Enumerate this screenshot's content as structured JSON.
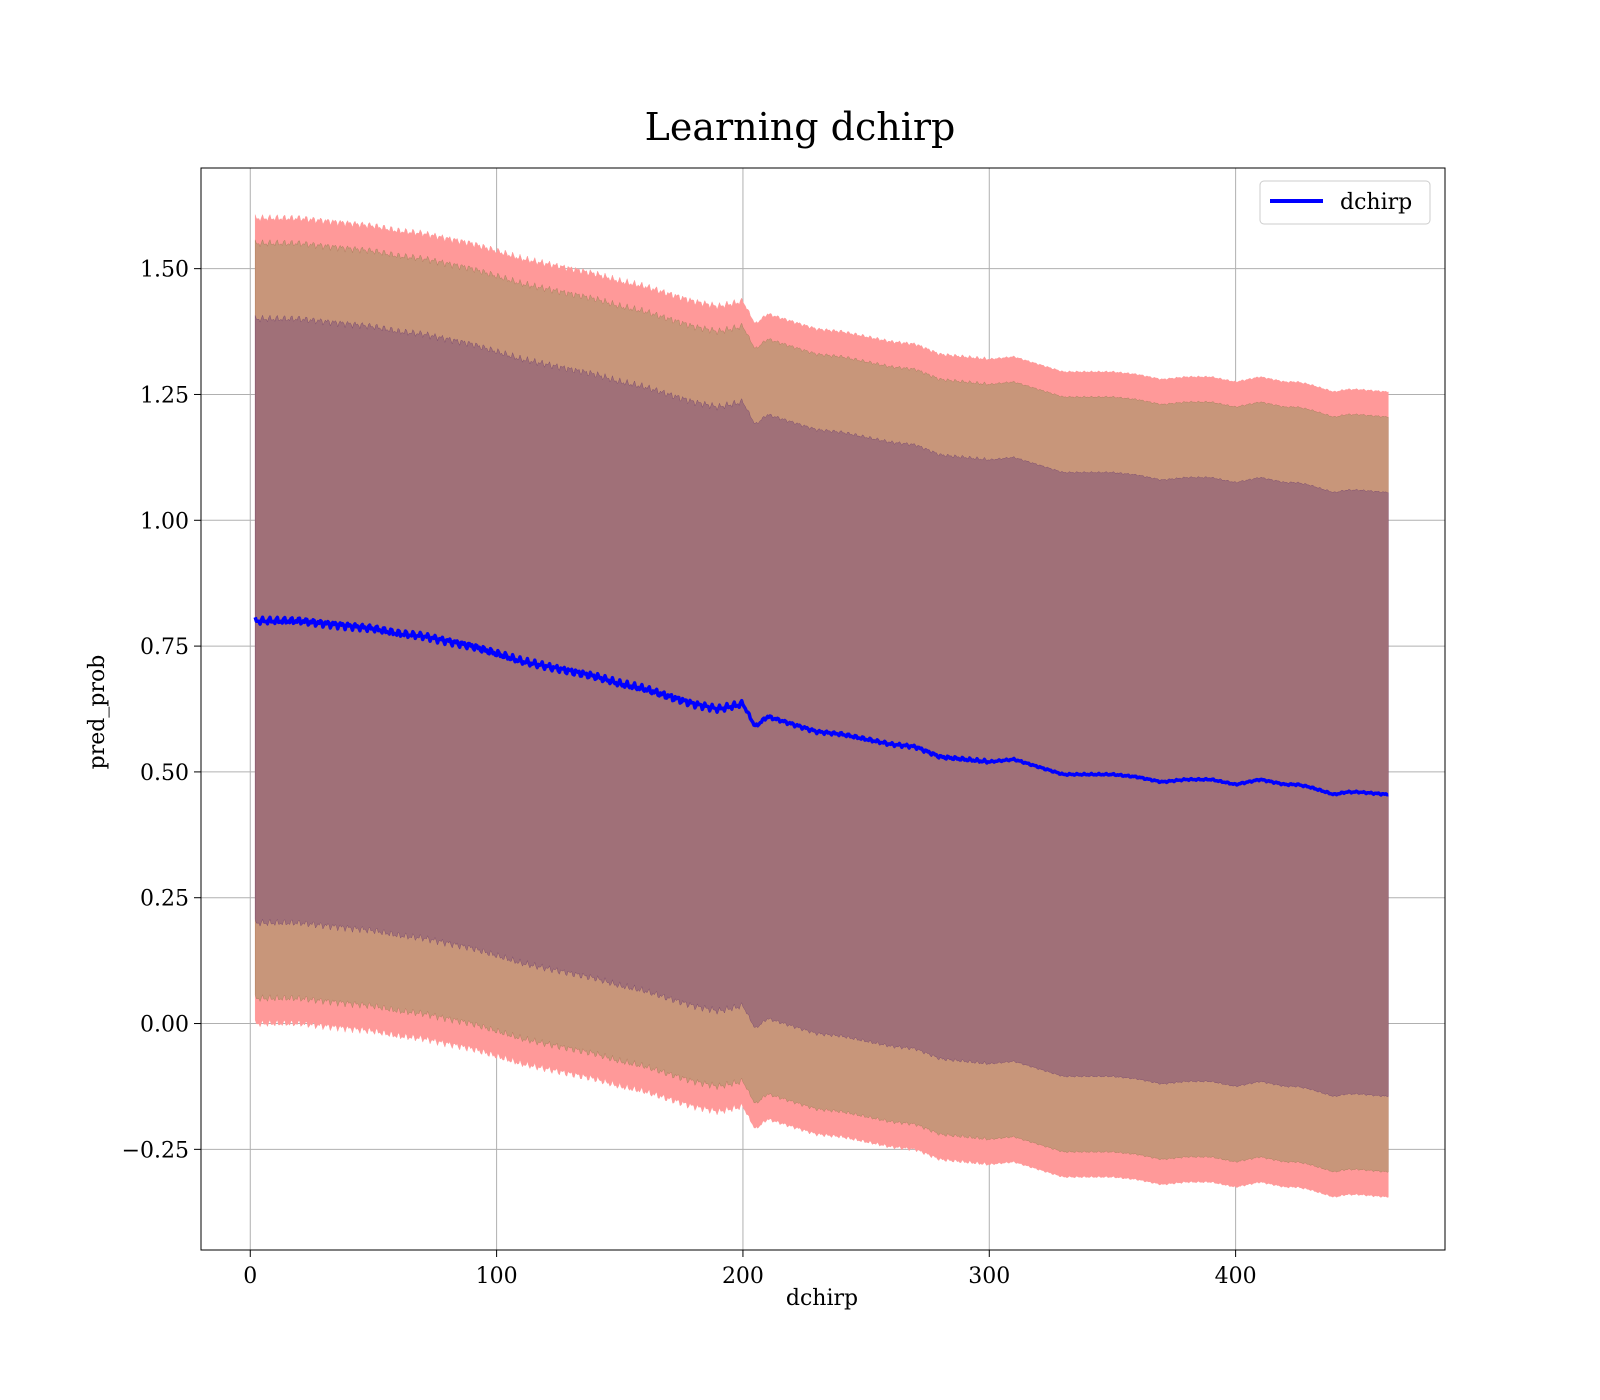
{
  "chart_data": {
    "type": "line",
    "title": "Learning dchirp",
    "xlabel": "dchirp",
    "ylabel": "pred_prob",
    "xlim": [
      -20,
      485
    ],
    "ylim": [
      -0.45,
      1.7
    ],
    "xticks": [
      0,
      100,
      200,
      300,
      400
    ],
    "xtick_labels": [
      "0",
      "100",
      "200",
      "300",
      "400"
    ],
    "yticks": [
      -0.25,
      0.0,
      0.25,
      0.5,
      0.75,
      1.0,
      1.25,
      1.5
    ],
    "ytick_labels": [
      "−0.25",
      "0.00",
      "0.25",
      "0.50",
      "0.75",
      "1.00",
      "1.25",
      "1.50"
    ],
    "grid": true,
    "legend": {
      "position": "top-right",
      "entries": [
        "dchirp"
      ]
    },
    "colors": {
      "line": "#0000ff",
      "band_outer": "#ff9999",
      "band_middle": "#c8967a",
      "band_inner": "#a07078"
    },
    "band_widths": {
      "inner": 0.6,
      "middle": 0.75,
      "outer": 0.8
    },
    "series": [
      {
        "name": "dchirp",
        "x": [
          2,
          10,
          20,
          30,
          40,
          50,
          60,
          70,
          80,
          90,
          100,
          110,
          120,
          130,
          140,
          150,
          160,
          170,
          180,
          190,
          200,
          205,
          210,
          220,
          230,
          240,
          250,
          260,
          270,
          280,
          290,
          300,
          310,
          320,
          330,
          340,
          350,
          360,
          370,
          380,
          390,
          400,
          410,
          420,
          425,
          430,
          440,
          445,
          450,
          462
        ],
        "y": [
          0.8,
          0.8,
          0.8,
          0.795,
          0.79,
          0.785,
          0.775,
          0.77,
          0.76,
          0.75,
          0.735,
          0.72,
          0.71,
          0.7,
          0.69,
          0.675,
          0.665,
          0.65,
          0.635,
          0.625,
          0.635,
          0.59,
          0.61,
          0.595,
          0.58,
          0.575,
          0.565,
          0.555,
          0.55,
          0.53,
          0.525,
          0.52,
          0.525,
          0.51,
          0.495,
          0.495,
          0.495,
          0.49,
          0.48,
          0.485,
          0.485,
          0.475,
          0.485,
          0.475,
          0.475,
          0.47,
          0.455,
          0.46,
          0.46,
          0.455
        ]
      }
    ]
  }
}
